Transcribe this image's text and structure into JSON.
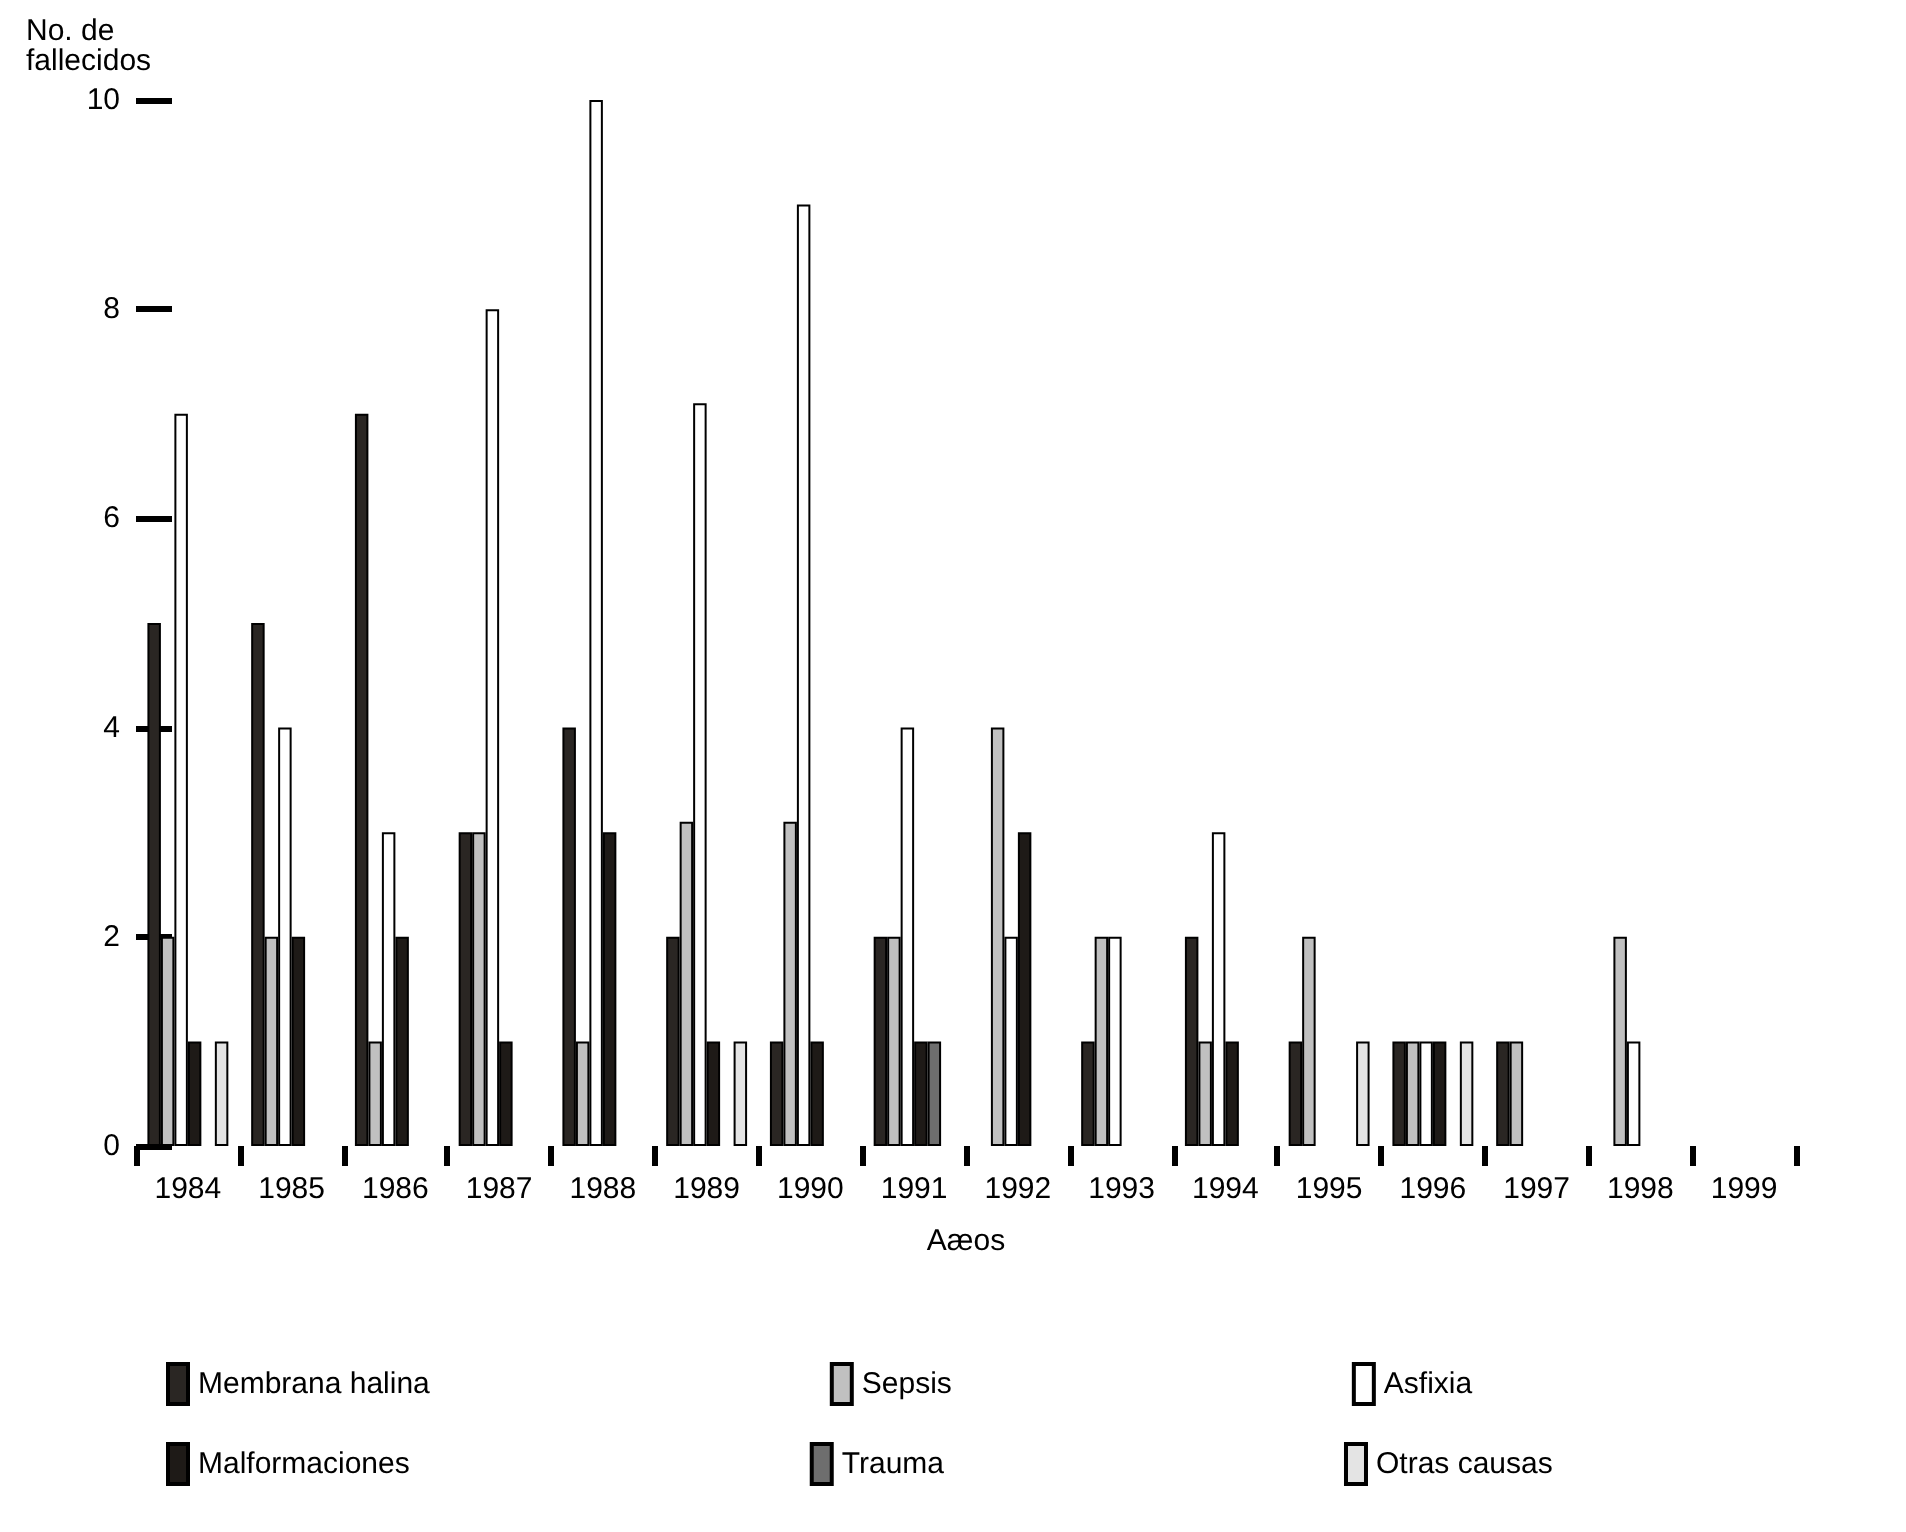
{
  "chart_data": {
    "type": "bar",
    "ylabel": "No. de\nfallecidos",
    "xlabel": "Aæos",
    "categories": [
      "1984",
      "1985",
      "1986",
      "1987",
      "1988",
      "1989",
      "1990",
      "1991",
      "1992",
      "1993",
      "1994",
      "1995",
      "1996",
      "1997",
      "1998",
      "1999"
    ],
    "series": [
      {
        "name": "Membrana halina",
        "color": "#2a2623",
        "values": [
          5,
          5,
          7,
          3,
          4,
          2,
          1,
          2,
          null,
          1,
          2,
          1,
          1,
          1,
          null,
          null
        ]
      },
      {
        "name": "Sepsis",
        "color": "#c0c0c0",
        "values": [
          2,
          2,
          1,
          3,
          1,
          3.1,
          3.1,
          2,
          4,
          2,
          1,
          2,
          1,
          1,
          2,
          null
        ]
      },
      {
        "name": "Asfixia",
        "color": "#ffffff",
        "values": [
          7,
          4,
          3,
          8,
          10,
          7.1,
          9,
          4,
          2,
          2,
          3,
          null,
          1,
          null,
          1,
          null
        ]
      },
      {
        "name": "Malformaciones",
        "color": "#1e1a17",
        "values": [
          1,
          2,
          2,
          1,
          3,
          1,
          1,
          1,
          3,
          null,
          1,
          null,
          1,
          null,
          null,
          null
        ]
      },
      {
        "name": "Trauma",
        "color": "#6e6e6e",
        "values": [
          null,
          null,
          null,
          null,
          null,
          null,
          null,
          1,
          null,
          null,
          null,
          null,
          null,
          null,
          null,
          null
        ]
      },
      {
        "name": "Otras causas",
        "color": "#e4e4e4",
        "values": [
          1,
          null,
          null,
          null,
          null,
          1,
          null,
          null,
          null,
          null,
          null,
          1,
          1,
          null,
          null,
          null
        ]
      }
    ],
    "ylim": [
      0,
      10
    ],
    "yticks": [
      0,
      2,
      4,
      6,
      8,
      10
    ],
    "grid": false,
    "legend": "bottom"
  }
}
